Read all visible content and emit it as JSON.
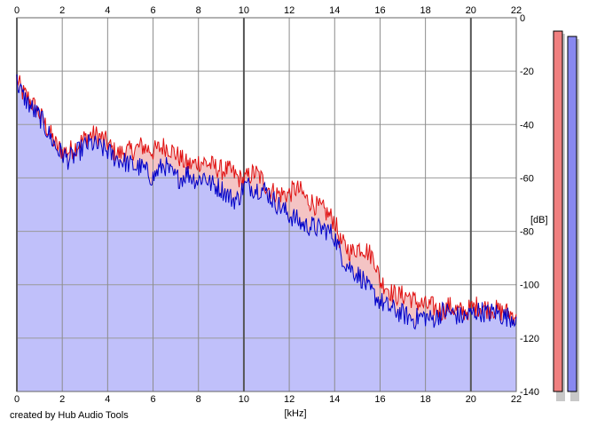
{
  "credit_text": "created by Hub Audio Tools",
  "chart_data": {
    "type": "area",
    "xlabel": "[kHz]",
    "ylabel": "[dB]",
    "xlim": [
      0,
      22
    ],
    "ylim": [
      -140,
      0
    ],
    "x_ticks": [
      0,
      2,
      4,
      6,
      8,
      10,
      12,
      14,
      16,
      18,
      20,
      22
    ],
    "y_ticks": [
      0,
      -20,
      -40,
      -60,
      -80,
      -100,
      -120,
      -140
    ],
    "grid": true,
    "series": [
      {
        "color": "#e01010",
        "fill": "#f4c4c4",
        "x": [
          0,
          0.25,
          0.5,
          0.75,
          1,
          1.25,
          1.5,
          1.75,
          2,
          2.25,
          2.5,
          2.75,
          3,
          3.25,
          3.5,
          3.75,
          4,
          4.25,
          4.5,
          4.75,
          5,
          5.25,
          5.5,
          5.75,
          6,
          6.25,
          6.5,
          6.75,
          7,
          7.25,
          7.5,
          7.75,
          8,
          8.25,
          8.5,
          8.75,
          9,
          9.25,
          9.5,
          9.75,
          10,
          10.25,
          10.5,
          10.75,
          11,
          11.25,
          11.5,
          11.75,
          12,
          12.25,
          12.5,
          12.75,
          13,
          13.25,
          13.5,
          13.75,
          14,
          14.25,
          14.5,
          14.75,
          15,
          15.25,
          15.5,
          15.75,
          16,
          16.25,
          16.5,
          16.75,
          17,
          17.25,
          17.5,
          17.75,
          18,
          18.25,
          18.5,
          18.75,
          19,
          19.25,
          19.5,
          19.75,
          20,
          20.25,
          20.5,
          20.75,
          21,
          21.25,
          21.5,
          21.75,
          22
        ],
        "y": [
          -23,
          -28,
          -30,
          -33,
          -36,
          -40,
          -44,
          -48,
          -50,
          -50,
          -49,
          -47,
          -45,
          -44,
          -44,
          -45,
          -47,
          -50,
          -51,
          -50,
          -50,
          -49,
          -48,
          -49,
          -50,
          -49,
          -48,
          -49,
          -51,
          -53,
          -55,
          -55,
          -54,
          -54,
          -55,
          -56,
          -57,
          -57,
          -58,
          -60,
          -61,
          -59,
          -58,
          -60,
          -63,
          -65,
          -66,
          -66,
          -66,
          -64,
          -65,
          -68,
          -69,
          -71,
          -72,
          -74,
          -76,
          -84,
          -86,
          -88,
          -86,
          -86,
          -88,
          -90,
          -99,
          -100,
          -103,
          -104,
          -104,
          -104,
          -106,
          -107,
          -108,
          -108,
          -109,
          -110,
          -108,
          -109,
          -110,
          -110,
          -109,
          -108,
          -108,
          -109,
          -109,
          -110,
          -110,
          -111,
          -111
        ]
      },
      {
        "color": "#0000c8",
        "fill": "#c0c0fa",
        "x": [
          0,
          0.25,
          0.5,
          0.75,
          1,
          1.25,
          1.5,
          1.75,
          2,
          2.25,
          2.5,
          2.75,
          3,
          3.25,
          3.5,
          3.75,
          4,
          4.25,
          4.5,
          4.75,
          5,
          5.25,
          5.5,
          5.75,
          6,
          6.25,
          6.5,
          6.75,
          7,
          7.25,
          7.5,
          7.75,
          8,
          8.25,
          8.5,
          8.75,
          9,
          9.25,
          9.5,
          9.75,
          10,
          10.25,
          10.5,
          10.75,
          11,
          11.25,
          11.5,
          11.75,
          12,
          12.25,
          12.5,
          12.75,
          13,
          13.25,
          13.5,
          13.75,
          14,
          14.25,
          14.5,
          14.75,
          15,
          15.25,
          15.5,
          15.75,
          16,
          16.25,
          16.5,
          16.75,
          17,
          17.25,
          17.5,
          17.75,
          18,
          18.25,
          18.5,
          18.75,
          19,
          19.25,
          19.5,
          19.75,
          20,
          20.25,
          20.5,
          20.75,
          21,
          21.25,
          21.5,
          21.75,
          22
        ],
        "y": [
          -24,
          -29,
          -32,
          -35,
          -37,
          -41,
          -45,
          -49,
          -51,
          -53,
          -52,
          -50,
          -48,
          -47,
          -48,
          -49,
          -50,
          -52,
          -53,
          -54,
          -55,
          -56,
          -56,
          -58,
          -60,
          -57,
          -55,
          -58,
          -60,
          -60,
          -58,
          -60,
          -61,
          -59,
          -62,
          -63,
          -64,
          -66,
          -68,
          -68,
          -63,
          -63,
          -64,
          -64,
          -65,
          -68,
          -70,
          -72,
          -74,
          -75,
          -77,
          -78,
          -78,
          -79,
          -79,
          -80,
          -82,
          -88,
          -92,
          -94,
          -96,
          -98,
          -102,
          -104,
          -106,
          -108,
          -109,
          -110,
          -111,
          -112,
          -113,
          -112,
          -112,
          -113,
          -112,
          -110,
          -110,
          -111,
          -112,
          -112,
          -111,
          -110,
          -110,
          -111,
          -110,
          -111,
          -112,
          -112,
          -112
        ]
      }
    ],
    "level_meters": [
      {
        "color": "#f08080",
        "level_db": -5
      },
      {
        "color": "#8888f0",
        "level_db": -7
      }
    ]
  }
}
